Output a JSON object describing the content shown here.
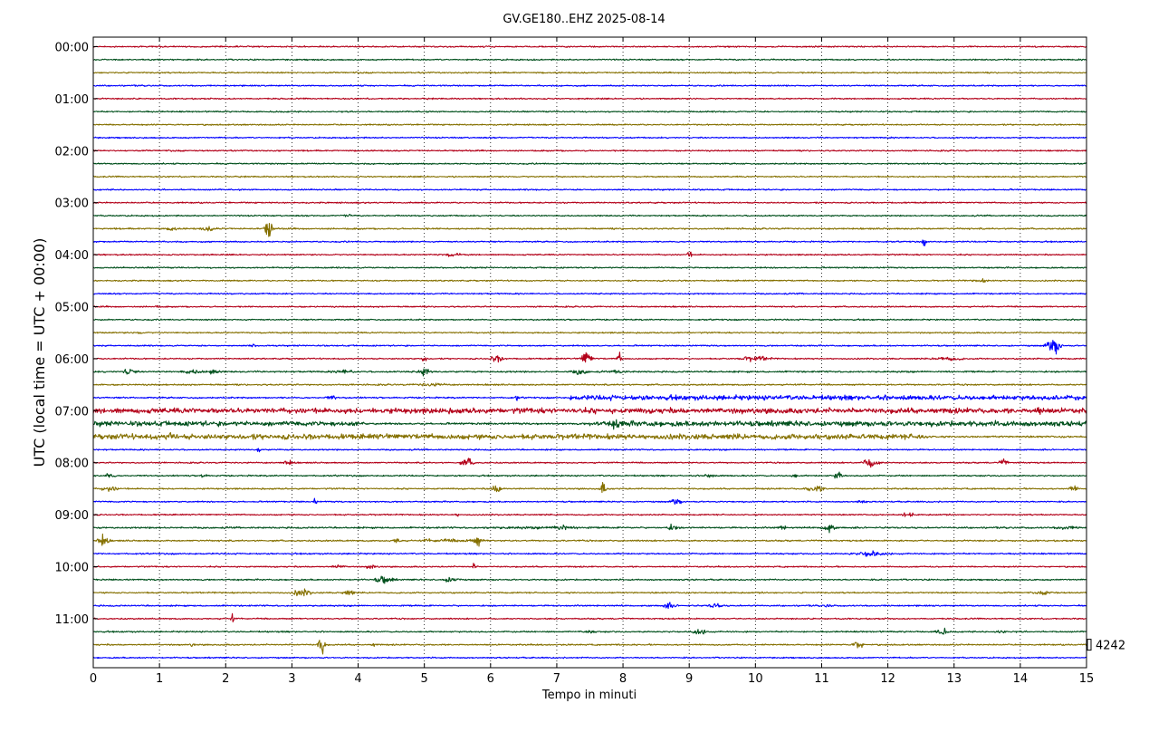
{
  "chart_data": {
    "type": "line",
    "title": "GV.GE180..EHZ 2025-08-14",
    "xlabel": "Tempo in minuti",
    "ylabel": "UTC (local time = UTC + 00:00)",
    "xlim": [
      0,
      15
    ],
    "x_ticks": [
      "0",
      "1",
      "2",
      "3",
      "4",
      "5",
      "6",
      "7",
      "8",
      "9",
      "10",
      "11",
      "12",
      "13",
      "14",
      "15"
    ],
    "y_ticks": [
      "00:00",
      "01:00",
      "02:00",
      "03:00",
      "04:00",
      "05:00",
      "06:00",
      "07:00",
      "08:00",
      "09:00",
      "10:00",
      "11:00"
    ],
    "grid": "vertical dotted",
    "scale_label": "4242",
    "series_colors": [
      "#b30019",
      "#00501c",
      "#857000",
      "#0000ff"
    ],
    "rows": [
      {
        "time": "00:00",
        "color": "#b30019",
        "amplitude": 0.14,
        "events": []
      },
      {
        "time": "00:15",
        "color": "#00501c",
        "amplitude": 0.14,
        "events": []
      },
      {
        "time": "00:30",
        "color": "#857000",
        "amplitude": 0.14,
        "events": []
      },
      {
        "time": "00:45",
        "color": "#0000ff",
        "amplitude": 0.14,
        "events": []
      },
      {
        "time": "01:00",
        "color": "#b30019",
        "amplitude": 0.14,
        "events": []
      },
      {
        "time": "01:15",
        "color": "#00501c",
        "amplitude": 0.14,
        "events": []
      },
      {
        "time": "01:30",
        "color": "#857000",
        "amplitude": 0.14,
        "events": []
      },
      {
        "time": "01:45",
        "color": "#0000ff",
        "amplitude": 0.14,
        "events": []
      },
      {
        "time": "02:00",
        "color": "#b30019",
        "amplitude": 0.14,
        "events": []
      },
      {
        "time": "02:15",
        "color": "#00501c",
        "amplitude": 0.14,
        "events": []
      },
      {
        "time": "02:30",
        "color": "#857000",
        "amplitude": 0.14,
        "events": []
      },
      {
        "time": "02:45",
        "color": "#0000ff",
        "amplitude": 0.14,
        "events": []
      },
      {
        "time": "03:00",
        "color": "#b30019",
        "amplitude": 0.14,
        "events": []
      },
      {
        "time": "03:15",
        "color": "#00501c",
        "amplitude": 0.14,
        "events": [
          [
            3.85,
            0.5,
            0.06
          ]
        ]
      },
      {
        "time": "03:30",
        "color": "#857000",
        "amplitude": 0.16,
        "events": [
          [
            1.2,
            0.6,
            0.08
          ],
          [
            1.75,
            0.5,
            0.15
          ],
          [
            2.65,
            3.0,
            0.05
          ]
        ]
      },
      {
        "time": "03:45",
        "color": "#0000ff",
        "amplitude": 0.14,
        "events": [
          [
            12.55,
            0.9,
            0.03
          ]
        ]
      },
      {
        "time": "04:00",
        "color": "#b30019",
        "amplitude": 0.14,
        "events": [
          [
            9.0,
            0.8,
            0.04
          ],
          [
            5.4,
            0.4,
            0.2
          ]
        ]
      },
      {
        "time": "04:15",
        "color": "#00501c",
        "amplitude": 0.14,
        "events": []
      },
      {
        "time": "04:30",
        "color": "#857000",
        "amplitude": 0.14,
        "events": [
          [
            13.4,
            0.4,
            0.15
          ]
        ]
      },
      {
        "time": "04:45",
        "color": "#0000ff",
        "amplitude": 0.14,
        "events": []
      },
      {
        "time": "05:00",
        "color": "#b30019",
        "amplitude": 0.14,
        "events": [
          [
            0.95,
            0.4,
            0.05
          ]
        ]
      },
      {
        "time": "05:15",
        "color": "#00501c",
        "amplitude": 0.14,
        "events": []
      },
      {
        "time": "05:30",
        "color": "#857000",
        "amplitude": 0.14,
        "events": [
          [
            0.7,
            0.4,
            0.05
          ]
        ]
      },
      {
        "time": "05:45",
        "color": "#0000ff",
        "amplitude": 0.14,
        "events": [
          [
            2.4,
            0.5,
            0.05
          ],
          [
            14.5,
            2.0,
            0.1
          ]
        ]
      },
      {
        "time": "06:00",
        "color": "#b30019",
        "amplitude": 0.14,
        "events": [
          [
            5.0,
            1.5,
            0.03
          ],
          [
            6.1,
            0.7,
            0.12
          ],
          [
            7.45,
            1.6,
            0.08
          ],
          [
            7.95,
            1.2,
            0.04
          ],
          [
            10.0,
            0.6,
            0.25
          ],
          [
            12.9,
            0.5,
            0.25
          ]
        ]
      },
      {
        "time": "06:15",
        "color": "#00501c",
        "amplitude": 0.17,
        "events": [
          [
            0.55,
            0.9,
            0.1
          ],
          [
            1.5,
            0.5,
            0.2
          ],
          [
            1.8,
            0.8,
            0.1
          ],
          [
            3.8,
            0.5,
            0.2
          ],
          [
            5.0,
            0.9,
            0.1
          ],
          [
            7.35,
            0.6,
            0.15
          ],
          [
            7.95,
            0.6,
            0.1
          ]
        ]
      },
      {
        "time": "06:30",
        "color": "#857000",
        "amplitude": 0.16,
        "events": [
          [
            5.1,
            0.4,
            0.3
          ]
        ]
      },
      {
        "time": "06:45",
        "color": "#0000ff",
        "amplitude": 0.16,
        "events": [
          [
            3.6,
            0.5,
            0.1
          ],
          [
            6.4,
            0.7,
            0.03
          ]
        ],
        "bands": [
          [
            7.2,
            15.0,
            0.5
          ]
        ]
      },
      {
        "time": "07:00",
        "color": "#b30019",
        "amplitude": 0.2,
        "events": [
          [
            14.3,
            1.3,
            0.08
          ]
        ],
        "bands": [
          [
            0.0,
            15.0,
            0.55
          ]
        ]
      },
      {
        "time": "07:15",
        "color": "#00501c",
        "amplitude": 0.2,
        "events": [
          [
            7.9,
            1.2,
            0.1
          ]
        ],
        "bands": [
          [
            0.0,
            4.1,
            0.5
          ],
          [
            7.5,
            15.0,
            0.55
          ]
        ]
      },
      {
        "time": "07:30",
        "color": "#857000",
        "amplitude": 0.2,
        "events": [
          [
            1.15,
            1.0,
            0.1
          ]
        ],
        "bands": [
          [
            0.0,
            12.6,
            0.55
          ]
        ]
      },
      {
        "time": "07:45",
        "color": "#0000ff",
        "amplitude": 0.14,
        "events": [
          [
            2.5,
            0.8,
            0.03
          ]
        ]
      },
      {
        "time": "08:00",
        "color": "#b30019",
        "amplitude": 0.14,
        "events": [
          [
            2.95,
            0.6,
            0.1
          ],
          [
            5.65,
            1.0,
            0.1
          ],
          [
            11.75,
            1.2,
            0.12
          ],
          [
            13.75,
            0.7,
            0.08
          ]
        ]
      },
      {
        "time": "08:15",
        "color": "#00501c",
        "amplitude": 0.15,
        "events": [
          [
            0.25,
            0.7,
            0.08
          ],
          [
            1.65,
            0.5,
            0.08
          ],
          [
            9.3,
            0.7,
            0.08
          ],
          [
            10.6,
            0.5,
            0.08
          ],
          [
            11.25,
            1.3,
            0.05
          ]
        ]
      },
      {
        "time": "08:30",
        "color": "#857000",
        "amplitude": 0.15,
        "events": [
          [
            0.25,
            0.6,
            0.15
          ],
          [
            6.1,
            0.9,
            0.1
          ],
          [
            7.7,
            1.6,
            0.04
          ],
          [
            10.9,
            0.8,
            0.15
          ],
          [
            14.8,
            0.7,
            0.08
          ]
        ]
      },
      {
        "time": "08:45",
        "color": "#0000ff",
        "amplitude": 0.14,
        "events": [
          [
            3.35,
            0.8,
            0.03
          ],
          [
            8.8,
            0.9,
            0.08
          ],
          [
            11.6,
            0.4,
            0.1
          ]
        ]
      },
      {
        "time": "09:00",
        "color": "#b30019",
        "amplitude": 0.14,
        "events": [
          [
            12.3,
            0.6,
            0.1
          ],
          [
            5.5,
            0.4,
            0.05
          ]
        ]
      },
      {
        "time": "09:15",
        "color": "#00501c",
        "amplitude": 0.17,
        "events": [
          [
            7.05,
            0.9,
            0.12
          ],
          [
            8.75,
            0.7,
            0.1
          ],
          [
            10.4,
            0.7,
            0.06
          ],
          [
            11.1,
            1.1,
            0.1
          ],
          [
            14.7,
            0.4,
            0.25
          ]
        ],
        "bands": [
          [
            5.9,
            7.5,
            0.25
          ]
        ]
      },
      {
        "time": "09:30",
        "color": "#857000",
        "amplitude": 0.16,
        "events": [
          [
            0.15,
            1.5,
            0.08
          ],
          [
            4.6,
            0.7,
            0.08
          ],
          [
            5.8,
            1.5,
            0.05
          ]
        ],
        "bands": [
          [
            5.0,
            5.9,
            0.35
          ]
        ]
      },
      {
        "time": "09:45",
        "color": "#0000ff",
        "amplitude": 0.15,
        "events": [
          [
            11.75,
            0.8,
            0.2
          ]
        ],
        "bands": [
          [
            11.4,
            12.1,
            0.25
          ]
        ]
      },
      {
        "time": "10:00",
        "color": "#b30019",
        "amplitude": 0.14,
        "events": [
          [
            3.7,
            0.5,
            0.1
          ],
          [
            4.2,
            0.6,
            0.08
          ],
          [
            5.75,
            1.0,
            0.03
          ]
        ]
      },
      {
        "time": "10:15",
        "color": "#00501c",
        "amplitude": 0.15,
        "events": [
          [
            4.4,
            0.9,
            0.15
          ],
          [
            5.4,
            0.6,
            0.15
          ]
        ]
      },
      {
        "time": "10:30",
        "color": "#857000",
        "amplitude": 0.15,
        "events": [
          [
            3.15,
            0.8,
            0.15
          ],
          [
            3.85,
            0.7,
            0.1
          ],
          [
            14.4,
            0.4,
            0.2
          ]
        ]
      },
      {
        "time": "10:45",
        "color": "#0000ff",
        "amplitude": 0.15,
        "events": [
          [
            8.7,
            0.6,
            0.12
          ],
          [
            9.4,
            0.6,
            0.12
          ],
          [
            11.1,
            0.4,
            0.08
          ]
        ]
      },
      {
        "time": "11:00",
        "color": "#b30019",
        "amplitude": 0.14,
        "events": [
          [
            2.1,
            1.0,
            0.03
          ]
        ]
      },
      {
        "time": "11:15",
        "color": "#00501c",
        "amplitude": 0.15,
        "events": [
          [
            7.5,
            0.4,
            0.1
          ],
          [
            9.15,
            0.7,
            0.15
          ],
          [
            12.8,
            1.2,
            0.08
          ],
          [
            13.7,
            0.5,
            0.1
          ]
        ]
      },
      {
        "time": "11:30",
        "color": "#857000",
        "amplitude": 0.15,
        "events": [
          [
            3.45,
            2.5,
            0.05
          ],
          [
            4.25,
            0.5,
            0.05
          ],
          [
            11.55,
            1.0,
            0.08
          ],
          [
            1.5,
            0.4,
            0.05
          ]
        ]
      },
      {
        "time": "11:45",
        "color": "#0000ff",
        "amplitude": 0.14,
        "events": []
      }
    ]
  }
}
